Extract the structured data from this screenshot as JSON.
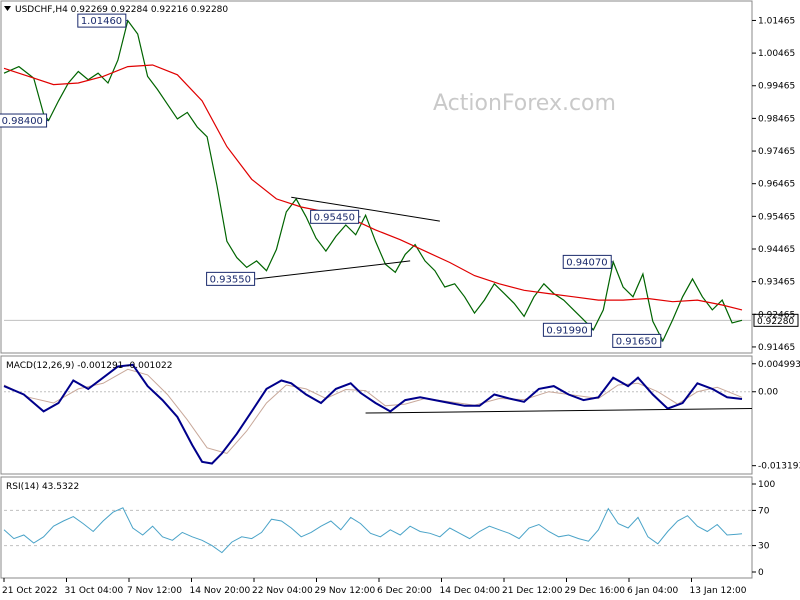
{
  "header": {
    "symbol_line": "USDCHF,H4  0.92269 0.92284 0.92216 0.92280",
    "macd_line": "MACD(12,26,9) -0.001291 -0.001022",
    "rsi_line": "RSI(14) 43.5322"
  },
  "watermark": "ActionForex.com",
  "colors": {
    "price": "#006400",
    "ma": "#e00000",
    "macd": "#00008b",
    "signal": "#c8a89a",
    "box_border": "#1a2a6c",
    "trendline": "#000000",
    "grid": "#c0c0c0",
    "rsi": "#4aa3c8"
  },
  "chart_data": [
    {
      "type": "line",
      "panel": "price",
      "y_ticks": [
        "1.01465",
        "1.00465",
        "0.99465",
        "0.98465",
        "0.97465",
        "0.96465",
        "0.95465",
        "0.94465",
        "0.93465",
        "0.92465",
        "0.91465"
      ],
      "ylim": [
        0.9131,
        1.0203
      ],
      "current_price": "0.92280",
      "x_labels": [
        "21 Oct 2022",
        "31 Oct 04:00",
        "7 Nov 12:00",
        "14 Nov 20:00",
        "22 Nov 04:00",
        "29 Nov 12:00",
        "6 Dec 20:00",
        "14 Dec 04:00",
        "21 Dec 12:00",
        "29 Dec 16:00",
        "6 Jan 04:00",
        "13 Jan 12:00"
      ],
      "x_index_range": [
        0,
        149
      ],
      "price_series": [
        [
          0,
          0.9985
        ],
        [
          3,
          1.0005
        ],
        [
          6,
          0.997
        ],
        [
          8,
          0.986
        ],
        [
          9,
          0.984
        ],
        [
          11,
          0.99
        ],
        [
          13,
          0.9955
        ],
        [
          15,
          0.999
        ],
        [
          17,
          0.9965
        ],
        [
          19,
          0.9985
        ],
        [
          21,
          0.9955
        ],
        [
          23,
          1.0025
        ],
        [
          25,
          1.0146
        ],
        [
          27,
          1.0105
        ],
        [
          29,
          0.9975
        ],
        [
          31,
          0.9935
        ],
        [
          33,
          0.989
        ],
        [
          35,
          0.9845
        ],
        [
          37,
          0.9865
        ],
        [
          39,
          0.982
        ],
        [
          41,
          0.979
        ],
        [
          43,
          0.964
        ],
        [
          45,
          0.947
        ],
        [
          47,
          0.942
        ],
        [
          49,
          0.939
        ],
        [
          51,
          0.941
        ],
        [
          53,
          0.938
        ],
        [
          55,
          0.9445
        ],
        [
          57,
          0.956
        ],
        [
          59,
          0.96
        ],
        [
          61,
          0.9545
        ],
        [
          63,
          0.948
        ],
        [
          65,
          0.944
        ],
        [
          67,
          0.9485
        ],
        [
          69,
          0.952
        ],
        [
          71,
          0.949
        ],
        [
          73,
          0.955
        ],
        [
          75,
          0.947
        ],
        [
          77,
          0.94
        ],
        [
          79,
          0.9375
        ],
        [
          81,
          0.943
        ],
        [
          83,
          0.946
        ],
        [
          85,
          0.941
        ],
        [
          87,
          0.938
        ],
        [
          89,
          0.933
        ],
        [
          91,
          0.934
        ],
        [
          93,
          0.93
        ],
        [
          95,
          0.925
        ],
        [
          97,
          0.929
        ],
        [
          99,
          0.934
        ],
        [
          101,
          0.931
        ],
        [
          103,
          0.928
        ],
        [
          105,
          0.924
        ],
        [
          107,
          0.93
        ],
        [
          109,
          0.934
        ],
        [
          111,
          0.931
        ],
        [
          113,
          0.929
        ],
        [
          115,
          0.926
        ],
        [
          117,
          0.923
        ],
        [
          119,
          0.9199
        ],
        [
          121,
          0.926
        ],
        [
          123,
          0.9407
        ],
        [
          125,
          0.933
        ],
        [
          127,
          0.93
        ],
        [
          129,
          0.937
        ],
        [
          131,
          0.9225
        ],
        [
          133,
          0.9165
        ],
        [
          135,
          0.923
        ],
        [
          137,
          0.93
        ],
        [
          139,
          0.9355
        ],
        [
          141,
          0.93
        ],
        [
          143,
          0.926
        ],
        [
          145,
          0.929
        ],
        [
          147,
          0.922
        ],
        [
          149,
          0.9228
        ]
      ],
      "ma_series": [
        [
          0,
          1.0
        ],
        [
          5,
          0.9975
        ],
        [
          10,
          0.995
        ],
        [
          15,
          0.9955
        ],
        [
          20,
          0.9975
        ],
        [
          25,
          1.0005
        ],
        [
          30,
          1.001
        ],
        [
          35,
          0.998
        ],
        [
          40,
          0.99
        ],
        [
          45,
          0.976
        ],
        [
          50,
          0.966
        ],
        [
          55,
          0.96
        ],
        [
          60,
          0.9575
        ],
        [
          65,
          0.956
        ],
        [
          70,
          0.954
        ],
        [
          75,
          0.9505
        ],
        [
          80,
          0.9475
        ],
        [
          85,
          0.944
        ],
        [
          90,
          0.9405
        ],
        [
          95,
          0.9365
        ],
        [
          100,
          0.934
        ],
        [
          105,
          0.932
        ],
        [
          110,
          0.931
        ],
        [
          115,
          0.93
        ],
        [
          120,
          0.929
        ],
        [
          125,
          0.929
        ],
        [
          130,
          0.9295
        ],
        [
          135,
          0.9285
        ],
        [
          140,
          0.929
        ],
        [
          145,
          0.9275
        ],
        [
          149,
          0.926
        ]
      ],
      "annotations": [
        {
          "label": "1.01460",
          "x": 25,
          "y": 1.0146,
          "side": "left"
        },
        {
          "label": "0.98400",
          "x": 9,
          "y": 0.984,
          "side": "left"
        },
        {
          "label": "0.95450",
          "x": 72,
          "y": 0.9545,
          "side": "left"
        },
        {
          "label": "0.93550",
          "x": 51,
          "y": 0.9355,
          "side": "left"
        },
        {
          "label": "0.94070",
          "x": 123,
          "y": 0.9407,
          "side": "left"
        },
        {
          "label": "0.91990",
          "x": 119,
          "y": 0.9199,
          "side": "left"
        },
        {
          "label": "0.91650",
          "x": 133,
          "y": 0.9165,
          "side": "left"
        }
      ],
      "trendlines": [
        {
          "from": [
            58,
            0.9605
          ],
          "to": [
            88,
            0.9532
          ]
        },
        {
          "from": [
            51,
            0.9355
          ],
          "to": [
            82,
            0.941
          ]
        }
      ]
    },
    {
      "type": "line",
      "panel": "macd",
      "y_ticks": [
        "0.004993",
        "0.00",
        "-0.013193"
      ],
      "ylim": [
        -0.0145,
        0.0062
      ],
      "macd_series": [
        [
          0,
          0.001
        ],
        [
          4,
          -0.0005
        ],
        [
          8,
          -0.0035
        ],
        [
          11,
          -0.002
        ],
        [
          14,
          0.002
        ],
        [
          17,
          0.0005
        ],
        [
          20,
          0.0025
        ],
        [
          23,
          0.0045
        ],
        [
          26,
          0.0048
        ],
        [
          29,
          0.001
        ],
        [
          32,
          -0.0015
        ],
        [
          35,
          -0.0045
        ],
        [
          38,
          -0.0095
        ],
        [
          40,
          -0.0125
        ],
        [
          42,
          -0.0128
        ],
        [
          44,
          -0.011
        ],
        [
          47,
          -0.0075
        ],
        [
          50,
          -0.0035
        ],
        [
          53,
          0.0005
        ],
        [
          56,
          0.002
        ],
        [
          58,
          0.0015
        ],
        [
          61,
          -0.0005
        ],
        [
          64,
          -0.002
        ],
        [
          67,
          0.0005
        ],
        [
          70,
          0.0015
        ],
        [
          72,
          -0.0002
        ],
        [
          75,
          -0.002
        ],
        [
          78,
          -0.0035
        ],
        [
          81,
          -0.0015
        ],
        [
          84,
          -0.001
        ],
        [
          87,
          -0.0015
        ],
        [
          90,
          -0.002
        ],
        [
          93,
          -0.0025
        ],
        [
          96,
          -0.0025
        ],
        [
          99,
          -0.0005
        ],
        [
          102,
          -0.0012
        ],
        [
          105,
          -0.0018
        ],
        [
          108,
          0.0005
        ],
        [
          111,
          0.001
        ],
        [
          114,
          -0.0005
        ],
        [
          117,
          -0.0015
        ],
        [
          120,
          -0.001
        ],
        [
          123,
          0.0025
        ],
        [
          126,
          0.001
        ],
        [
          128,
          0.0025
        ],
        [
          131,
          -0.0005
        ],
        [
          134,
          -0.003
        ],
        [
          137,
          -0.002
        ],
        [
          140,
          0.0015
        ],
        [
          143,
          0.0005
        ],
        [
          146,
          -0.001
        ],
        [
          149,
          -0.0013
        ]
      ],
      "signal_series": [
        [
          0,
          0.0012
        ],
        [
          5,
          -0.001
        ],
        [
          10,
          -0.002
        ],
        [
          15,
          0.0005
        ],
        [
          20,
          0.0015
        ],
        [
          25,
          0.004
        ],
        [
          29,
          0.003
        ],
        [
          33,
          -0.0005
        ],
        [
          37,
          -0.005
        ],
        [
          41,
          -0.01
        ],
        [
          45,
          -0.011
        ],
        [
          49,
          -0.007
        ],
        [
          53,
          -0.002
        ],
        [
          57,
          0.0012
        ],
        [
          61,
          0.0005
        ],
        [
          65,
          -0.0012
        ],
        [
          69,
          0.0004
        ],
        [
          73,
          0.0002
        ],
        [
          77,
          -0.0025
        ],
        [
          81,
          -0.0022
        ],
        [
          85,
          -0.0012
        ],
        [
          90,
          -0.0018
        ],
        [
          95,
          -0.0024
        ],
        [
          100,
          -0.0012
        ],
        [
          105,
          -0.0014
        ],
        [
          110,
          0.0
        ],
        [
          115,
          -0.0006
        ],
        [
          120,
          -0.0012
        ],
        [
          124,
          0.0012
        ],
        [
          128,
          0.0015
        ],
        [
          132,
          0.0
        ],
        [
          136,
          -0.0022
        ],
        [
          140,
          0.0
        ],
        [
          144,
          0.0008
        ],
        [
          149,
          -0.001
        ]
      ],
      "support_line": {
        "from": [
          73,
          -0.0038
        ],
        "to": [
          149,
          -0.003
        ]
      }
    },
    {
      "type": "line",
      "panel": "rsi",
      "y_ticks": [
        "100",
        "70",
        "30",
        "0"
      ],
      "ylim": [
        0,
        100
      ],
      "levels": [
        70,
        30
      ],
      "rsi_series": [
        [
          0,
          48
        ],
        [
          2,
          38
        ],
        [
          4,
          42
        ],
        [
          6,
          33
        ],
        [
          8,
          40
        ],
        [
          10,
          52
        ],
        [
          12,
          58
        ],
        [
          14,
          63
        ],
        [
          16,
          55
        ],
        [
          18,
          46
        ],
        [
          20,
          58
        ],
        [
          22,
          68
        ],
        [
          24,
          73
        ],
        [
          26,
          50
        ],
        [
          28,
          42
        ],
        [
          30,
          52
        ],
        [
          32,
          40
        ],
        [
          34,
          36
        ],
        [
          36,
          45
        ],
        [
          38,
          40
        ],
        [
          40,
          36
        ],
        [
          42,
          30
        ],
        [
          44,
          22
        ],
        [
          46,
          34
        ],
        [
          48,
          40
        ],
        [
          50,
          38
        ],
        [
          52,
          45
        ],
        [
          54,
          60
        ],
        [
          56,
          58
        ],
        [
          58,
          50
        ],
        [
          60,
          40
        ],
        [
          62,
          45
        ],
        [
          64,
          52
        ],
        [
          66,
          58
        ],
        [
          68,
          48
        ],
        [
          70,
          62
        ],
        [
          72,
          55
        ],
        [
          74,
          44
        ],
        [
          76,
          40
        ],
        [
          78,
          48
        ],
        [
          80,
          42
        ],
        [
          82,
          52
        ],
        [
          84,
          46
        ],
        [
          86,
          44
        ],
        [
          88,
          40
        ],
        [
          90,
          50
        ],
        [
          92,
          44
        ],
        [
          94,
          38
        ],
        [
          96,
          46
        ],
        [
          98,
          52
        ],
        [
          100,
          48
        ],
        [
          102,
          44
        ],
        [
          104,
          38
        ],
        [
          106,
          50
        ],
        [
          108,
          54
        ],
        [
          110,
          46
        ],
        [
          112,
          40
        ],
        [
          114,
          42
        ],
        [
          116,
          38
        ],
        [
          118,
          35
        ],
        [
          120,
          48
        ],
        [
          122,
          72
        ],
        [
          124,
          55
        ],
        [
          126,
          50
        ],
        [
          128,
          62
        ],
        [
          130,
          40
        ],
        [
          132,
          32
        ],
        [
          134,
          46
        ],
        [
          136,
          58
        ],
        [
          138,
          64
        ],
        [
          140,
          52
        ],
        [
          142,
          46
        ],
        [
          144,
          54
        ],
        [
          146,
          42
        ],
        [
          148,
          43
        ],
        [
          149,
          43.5
        ]
      ]
    }
  ]
}
